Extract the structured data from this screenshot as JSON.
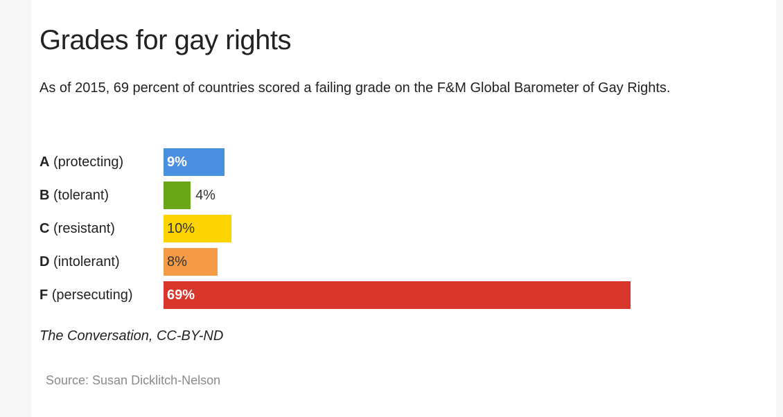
{
  "chart_data": {
    "type": "bar",
    "orientation": "horizontal",
    "title": "Grades for gay rights",
    "subtitle": "As of 2015, 69 percent of countries scored a failing grade on the F&M Global Barometer of Gay Rights.",
    "categories": [
      "A (protecting)",
      "B (tolerant)",
      "C (resistant)",
      "D (intolerant)",
      "F (persecuting)"
    ],
    "values": [
      9,
      4,
      10,
      8,
      69
    ],
    "value_labels": [
      "9%",
      "4%",
      "10%",
      "8%",
      "69%"
    ],
    "colors": [
      "#4a90e2",
      "#6aa617",
      "#fdd400",
      "#f59b45",
      "#d8352b"
    ],
    "note": "The Conversation, CC-BY-ND",
    "source": "Source: Susan Dicklitch-Nelson"
  }
}
